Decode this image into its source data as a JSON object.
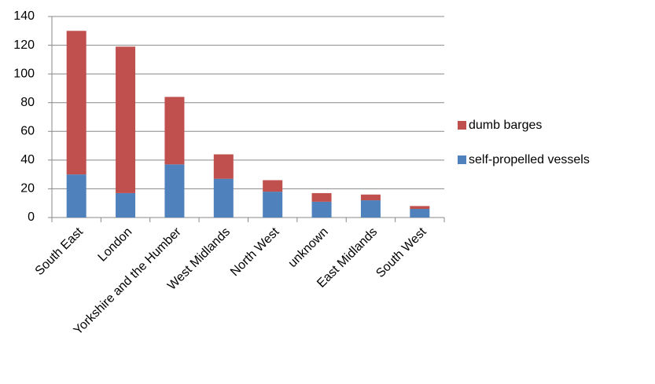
{
  "chart_data": {
    "type": "stacked_bar",
    "categories": [
      "South East",
      "London",
      "Yorkshire and the Humber",
      "West Midlands",
      "North West",
      "unknown",
      "East Midlands",
      "South West"
    ],
    "series": [
      {
        "name": "self-propelled vessels",
        "color": "#4f81bd",
        "values": [
          30,
          17,
          37,
          27,
          18,
          11,
          12,
          6
        ]
      },
      {
        "name": "dumb barges",
        "color": "#c0504d",
        "values": [
          100,
          102,
          47,
          17,
          8,
          6,
          4,
          2
        ]
      }
    ],
    "ylim": [
      0,
      140
    ],
    "yticks": [
      0,
      20,
      40,
      60,
      80,
      100,
      120,
      140
    ],
    "grid": true
  }
}
